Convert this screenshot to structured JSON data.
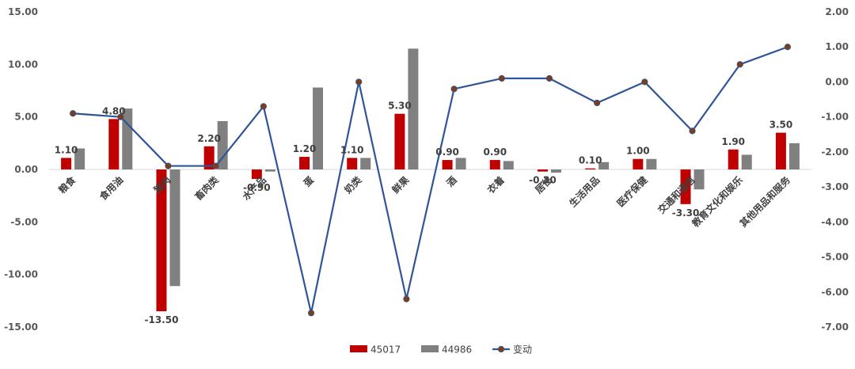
{
  "chart_data": {
    "type": "bar",
    "categories": [
      "粮食",
      "食用油",
      "猪肉",
      "畜肉类",
      "水产品",
      "蛋",
      "奶类",
      "鲜果",
      "酒",
      "衣着",
      "居住",
      "生活用品",
      "医疗保健",
      "交通和通信",
      "教育文化和娱乐",
      "其他用品和服务"
    ],
    "series": [
      {
        "name": "45017",
        "type": "bar",
        "axis": "left",
        "color": "#C00000",
        "values": [
          1.1,
          4.8,
          -13.5,
          2.2,
          -0.9,
          1.2,
          1.1,
          5.3,
          0.9,
          0.9,
          -0.2,
          0.1,
          1.0,
          -3.3,
          1.9,
          3.5
        ]
      },
      {
        "name": "44986",
        "type": "bar",
        "axis": "left",
        "color": "#808080",
        "values": [
          2.0,
          5.8,
          -11.1,
          4.6,
          -0.2,
          7.8,
          1.1,
          11.5,
          1.1,
          0.8,
          -0.3,
          0.7,
          1.0,
          -1.9,
          1.4,
          2.5
        ]
      },
      {
        "name": "变动",
        "type": "line",
        "axis": "right",
        "color": "#2F5597",
        "marker_color": "#843C0C",
        "values": [
          -0.9,
          -1.0,
          -2.4,
          -2.4,
          -0.7,
          -6.6,
          0.0,
          -6.2,
          -0.2,
          0.1,
          0.1,
          -0.6,
          0.0,
          -1.4,
          0.5,
          1.0
        ]
      }
    ],
    "data_labels": [
      "1.10",
      "4.80",
      "-13.50",
      "2.20",
      "-0.90",
      "1.20",
      "1.10",
      "5.30",
      "0.90",
      "0.90",
      "-0.20",
      "0.10",
      "1.00",
      "-3.30",
      "1.90",
      "3.50"
    ],
    "y_left": {
      "min": -15,
      "max": 15,
      "step": 5,
      "ticks": [
        "15.00",
        "10.00",
        "5.00",
        "0.00",
        "-5.00",
        "-10.00",
        "-15.00"
      ]
    },
    "y_right": {
      "min": -7,
      "max": 2,
      "step": 1,
      "ticks": [
        "2.00",
        "1.00",
        "0.00",
        "-1.00",
        "-2.00",
        "-3.00",
        "-4.00",
        "-5.00",
        "-6.00",
        "-7.00"
      ]
    },
    "grid": false,
    "legend_position": "bottom"
  }
}
